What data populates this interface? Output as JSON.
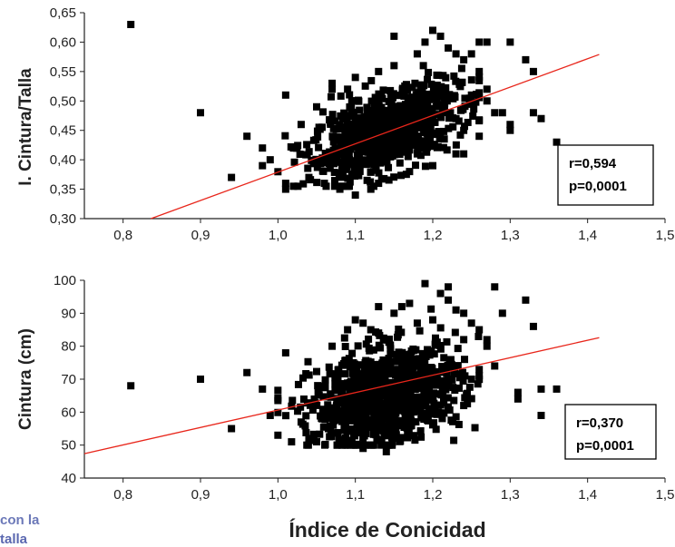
{
  "caption_fragment": [
    "con la",
    "talla"
  ],
  "colors": {
    "points": "#000000",
    "fit_line": "#e8261b",
    "axis": "#222222",
    "caption": "#6b78b8"
  },
  "chart_data": [
    {
      "type": "scatter",
      "title": "",
      "xlabel": "",
      "ylabel": "I. Cintura/Talla",
      "xlim": [
        0.75,
        1.5
      ],
      "ylim": [
        0.3,
        0.65
      ],
      "xticks": [
        "0,8",
        "0,9",
        "1,0",
        "1,1",
        "1,2",
        "1,3",
        "1,4",
        "1,5"
      ],
      "yticks": [
        "0,30",
        "0,35",
        "0,40",
        "0,45",
        "0,50",
        "0,55",
        "0,60",
        "0,65"
      ],
      "xtick_values": [
        0.8,
        0.9,
        1.0,
        1.1,
        1.2,
        1.3,
        1.4,
        1.5
      ],
      "ytick_values": [
        0.3,
        0.35,
        0.4,
        0.45,
        0.5,
        0.55,
        0.6,
        0.65
      ],
      "stats": [
        "r=0,594",
        "p=0,0001"
      ],
      "fit_line": {
        "x": [
          0.836,
          1.415
        ],
        "y": [
          0.3,
          0.579
        ]
      },
      "outliers": [
        [
          0.81,
          0.63
        ],
        [
          0.9,
          0.48
        ],
        [
          0.94,
          0.37
        ],
        [
          0.96,
          0.44
        ],
        [
          0.98,
          0.42
        ],
        [
          0.98,
          0.39
        ],
        [
          0.99,
          0.4
        ],
        [
          1.01,
          0.51
        ],
        [
          1.01,
          0.36
        ],
        [
          1.01,
          0.35
        ],
        [
          1.02,
          0.42
        ],
        [
          1.03,
          0.46
        ],
        [
          1.04,
          0.37
        ],
        [
          1.05,
          0.49
        ],
        [
          1.06,
          0.36
        ],
        [
          1.07,
          0.52
        ],
        [
          1.07,
          0.53
        ],
        [
          1.08,
          0.35
        ],
        [
          1.09,
          0.52
        ],
        [
          1.1,
          0.34
        ],
        [
          1.1,
          0.54
        ],
        [
          1.12,
          0.35
        ],
        [
          1.13,
          0.55
        ],
        [
          1.13,
          0.36
        ],
        [
          1.15,
          0.61
        ],
        [
          1.15,
          0.56
        ],
        [
          1.17,
          0.38
        ],
        [
          1.18,
          0.58
        ],
        [
          1.19,
          0.6
        ],
        [
          1.2,
          0.62
        ],
        [
          1.2,
          0.39
        ],
        [
          1.21,
          0.61
        ],
        [
          1.22,
          0.59
        ],
        [
          1.23,
          0.58
        ],
        [
          1.24,
          0.41
        ],
        [
          1.24,
          0.57
        ],
        [
          1.25,
          0.58
        ],
        [
          1.26,
          0.6
        ],
        [
          1.26,
          0.55
        ],
        [
          1.27,
          0.6
        ],
        [
          1.27,
          0.5
        ],
        [
          1.28,
          0.48
        ],
        [
          1.29,
          0.48
        ],
        [
          1.3,
          0.46
        ],
        [
          1.3,
          0.45
        ],
        [
          1.32,
          0.57
        ],
        [
          1.33,
          0.55
        ],
        [
          1.33,
          0.48
        ],
        [
          1.34,
          0.47
        ],
        [
          1.36,
          0.43
        ],
        [
          1.3,
          0.6
        ],
        [
          1.25,
          0.51
        ],
        [
          1.23,
          0.47
        ],
        [
          1.27,
          0.52
        ],
        [
          1.18,
          0.41
        ],
        [
          1.23,
          0.41
        ],
        [
          1.25,
          0.5
        ],
        [
          1.24,
          0.45
        ],
        [
          1.26,
          0.44
        ]
      ],
      "cloud": {
        "x_center": 1.14,
        "x_sd": 0.048,
        "x_min": 1.0,
        "x_max": 1.26,
        "intercept": -0.076,
        "slope": 0.46,
        "resid_sd": 0.032,
        "y_min": 0.355,
        "y_max": 0.56,
        "n": 850
      }
    },
    {
      "type": "scatter",
      "title": "",
      "xlabel": "Índice de Conicidad",
      "ylabel": "Cintura (cm)",
      "xlim": [
        0.75,
        1.5
      ],
      "ylim": [
        40,
        100
      ],
      "xticks": [
        "0,8",
        "0,9",
        "1,0",
        "1,1",
        "1,2",
        "1,3",
        "1,4",
        "1,5"
      ],
      "yticks": [
        "40",
        "50",
        "60",
        "70",
        "80",
        "90",
        "100"
      ],
      "xtick_values": [
        0.8,
        0.9,
        1.0,
        1.1,
        1.2,
        1.3,
        1.4,
        1.5
      ],
      "ytick_values": [
        40,
        50,
        60,
        70,
        80,
        90,
        100
      ],
      "stats": [
        "r=0,370",
        "p=0,0001"
      ],
      "fit_line": {
        "x": [
          0.75,
          1.415
        ],
        "y": [
          47.4,
          82.6
        ]
      },
      "outliers": [
        [
          0.81,
          68
        ],
        [
          0.9,
          70
        ],
        [
          0.94,
          55
        ],
        [
          0.96,
          72
        ],
        [
          0.98,
          67
        ],
        [
          0.99,
          59
        ],
        [
          1.0,
          53
        ],
        [
          1.01,
          78
        ],
        [
          1.03,
          57
        ],
        [
          1.04,
          52
        ],
        [
          1.05,
          51
        ],
        [
          1.07,
          80
        ],
        [
          1.09,
          85
        ],
        [
          1.1,
          88
        ],
        [
          1.11,
          87
        ],
        [
          1.11,
          49
        ],
        [
          1.13,
          84
        ],
        [
          1.14,
          48
        ],
        [
          1.15,
          90
        ],
        [
          1.16,
          92
        ],
        [
          1.17,
          93
        ],
        [
          1.18,
          87
        ],
        [
          1.19,
          99
        ],
        [
          1.2,
          88
        ],
        [
          1.21,
          96
        ],
        [
          1.22,
          98
        ],
        [
          1.22,
          94
        ],
        [
          1.23,
          91
        ],
        [
          1.24,
          90
        ],
        [
          1.25,
          87
        ],
        [
          1.26,
          85
        ],
        [
          1.27,
          82
        ],
        [
          1.28,
          98
        ],
        [
          1.28,
          74
        ],
        [
          1.29,
          90
        ],
        [
          1.31,
          64
        ],
        [
          1.31,
          66
        ],
        [
          1.32,
          94
        ],
        [
          1.33,
          86
        ],
        [
          1.34,
          59
        ],
        [
          1.34,
          67
        ],
        [
          1.36,
          67
        ],
        [
          1.13,
          92
        ],
        [
          1.12,
          85
        ],
        [
          1.24,
          82
        ],
        [
          1.27,
          80
        ],
        [
          1.25,
          70
        ],
        [
          1.22,
          70
        ],
        [
          1.24,
          62
        ]
      ],
      "cloud": {
        "x_center": 1.14,
        "x_sd": 0.048,
        "x_min": 1.0,
        "x_max": 1.26,
        "intercept": 10,
        "slope": 48,
        "resid_sd": 7.2,
        "y_min": 50,
        "y_max": 92,
        "n": 950
      }
    }
  ]
}
